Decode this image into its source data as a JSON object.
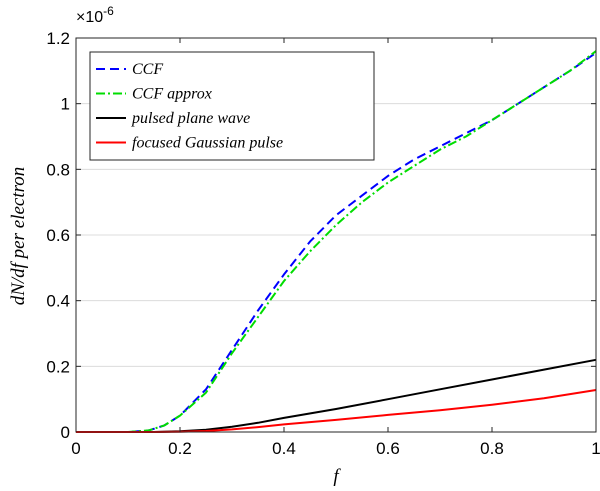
{
  "chart_data": {
    "type": "line",
    "xlabel": "f",
    "ylabel": "dN/df per electron",
    "y_multiplier_label": "×10",
    "y_multiplier_exponent": "-6",
    "xlim": [
      0,
      1
    ],
    "ylim": [
      0,
      1.2
    ],
    "x_ticks": [
      "0",
      "0.2",
      "0.4",
      "0.6",
      "0.8",
      "1"
    ],
    "y_ticks": [
      "0",
      "0.2",
      "0.4",
      "0.6",
      "0.8",
      "1",
      "1.2"
    ],
    "grid": "horizontal",
    "legend_position": "top-left",
    "series": [
      {
        "name": "CCF",
        "color": "#0000ff",
        "style": "dashed",
        "x": [
          0,
          0.1,
          0.14,
          0.17,
          0.2,
          0.25,
          0.3,
          0.35,
          0.4,
          0.45,
          0.5,
          0.55,
          0.6,
          0.65,
          0.7,
          0.75,
          0.8,
          0.85,
          0.9,
          0.95,
          1.0
        ],
        "y": [
          0,
          0.0,
          0.005,
          0.02,
          0.05,
          0.13,
          0.25,
          0.37,
          0.48,
          0.58,
          0.66,
          0.72,
          0.78,
          0.83,
          0.87,
          0.91,
          0.95,
          1.0,
          1.05,
          1.1,
          1.155
        ]
      },
      {
        "name": "CCF approx",
        "color": "#00dd00",
        "style": "dashdot",
        "x": [
          0,
          0.1,
          0.14,
          0.17,
          0.2,
          0.25,
          0.3,
          0.35,
          0.4,
          0.45,
          0.5,
          0.55,
          0.6,
          0.65,
          0.7,
          0.75,
          0.8,
          0.85,
          0.9,
          0.95,
          1.0
        ],
        "y": [
          0,
          0.0,
          0.005,
          0.02,
          0.05,
          0.12,
          0.24,
          0.35,
          0.46,
          0.55,
          0.63,
          0.7,
          0.76,
          0.81,
          0.86,
          0.9,
          0.95,
          1.0,
          1.05,
          1.1,
          1.16
        ]
      },
      {
        "name": "pulsed plane wave",
        "color": "#000000",
        "style": "solid",
        "x": [
          0,
          0.15,
          0.2,
          0.25,
          0.3,
          0.35,
          0.4,
          0.5,
          0.6,
          0.7,
          0.8,
          0.9,
          1.0
        ],
        "y": [
          0,
          0.0,
          0.002,
          0.007,
          0.016,
          0.028,
          0.043,
          0.07,
          0.1,
          0.13,
          0.16,
          0.19,
          0.22
        ]
      },
      {
        "name": "focused Gaussian pulse",
        "color": "#ff0000",
        "style": "solid",
        "x": [
          0,
          0.15,
          0.2,
          0.25,
          0.3,
          0.35,
          0.4,
          0.5,
          0.6,
          0.7,
          0.8,
          0.9,
          1.0
        ],
        "y": [
          0,
          0.0,
          0.001,
          0.003,
          0.008,
          0.015,
          0.023,
          0.037,
          0.052,
          0.066,
          0.083,
          0.103,
          0.128
        ]
      }
    ]
  }
}
